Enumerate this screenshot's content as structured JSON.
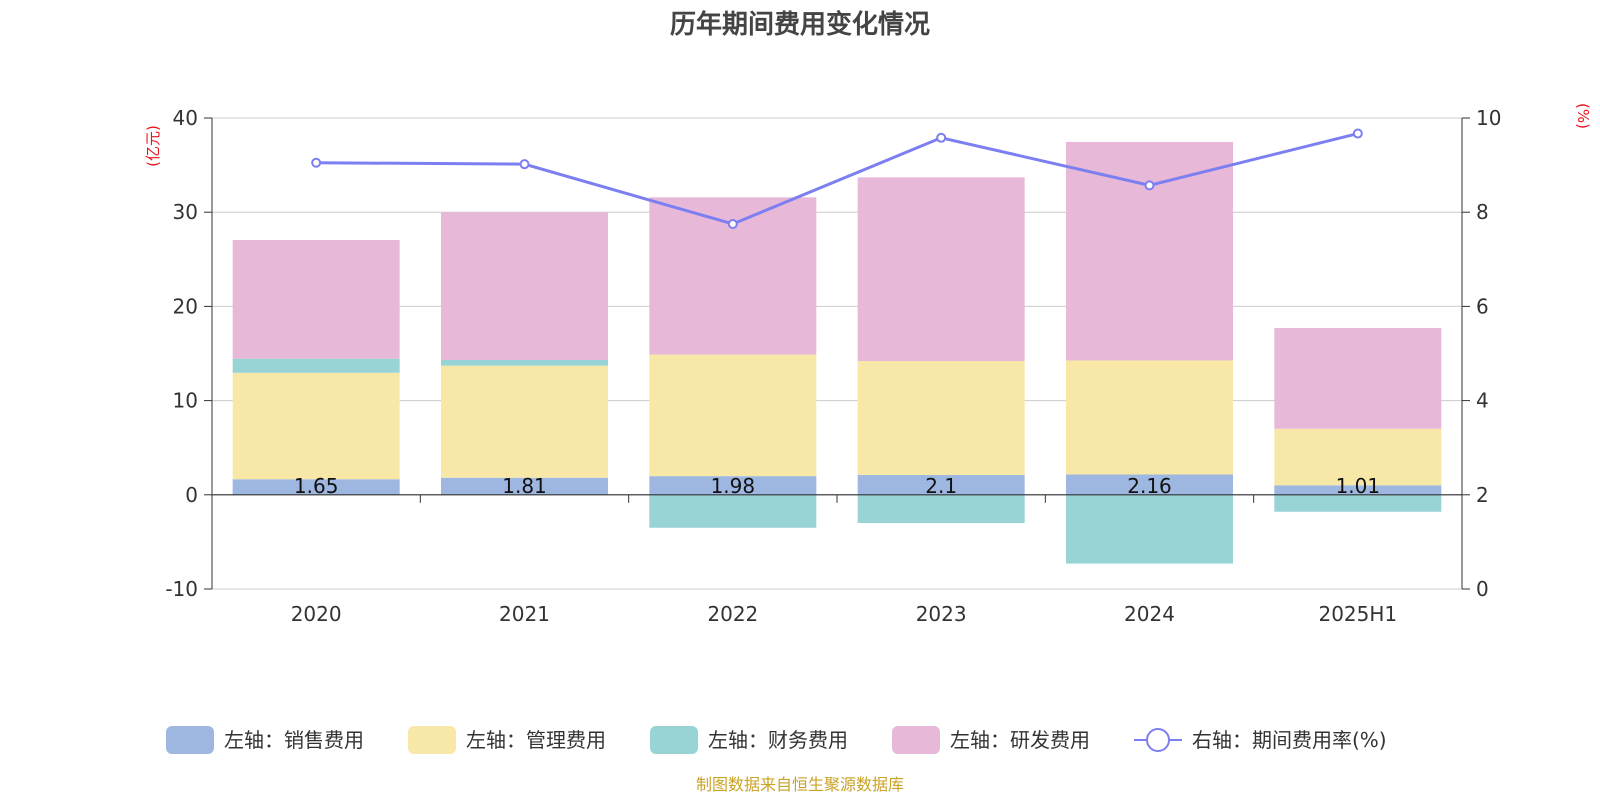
{
  "chart_data": {
    "type": "bar",
    "title": "历年期间费用变化情况",
    "categories": [
      "2020",
      "2021",
      "2022",
      "2023",
      "2024",
      "2025H1"
    ],
    "left_axis": {
      "unit": "(亿元)",
      "ylim": [
        -10,
        40
      ],
      "ticks": [
        "-10",
        "0",
        "10",
        "20",
        "30",
        "40"
      ]
    },
    "right_axis": {
      "unit": "(%)",
      "ylim": [
        0,
        10
      ],
      "ticks": [
        "0",
        "2",
        "4",
        "6",
        "8",
        "10"
      ]
    },
    "grid": true,
    "stacked": true,
    "series": [
      {
        "name": "左轴：销售费用",
        "axis": "left",
        "color": "#9db7e1",
        "values": [
          1.65,
          1.81,
          1.98,
          2.1,
          2.16,
          1.01
        ],
        "labels": [
          "1.65",
          "1.81",
          "1.98",
          "2.1",
          "2.16",
          "1.01"
        ]
      },
      {
        "name": "左轴：管理费用",
        "axis": "left",
        "color": "#f8e8a8",
        "values": [
          11.3,
          11.9,
          12.9,
          12.1,
          12.1,
          6.0
        ]
      },
      {
        "name": "左轴：财务费用",
        "axis": "left",
        "color": "#98d4d6",
        "values": [
          1.5,
          0.6,
          -3.5,
          -3.0,
          -7.3,
          -1.8
        ]
      },
      {
        "name": "左轴：研发费用",
        "axis": "left",
        "color": "#e8b8d8",
        "values": [
          12.6,
          15.7,
          16.7,
          19.5,
          23.2,
          10.7
        ]
      },
      {
        "name": "右轴：期间费用率(%)",
        "axis": "right",
        "type": "line",
        "color": "#7b7ff0",
        "values": [
          9.05,
          9.02,
          7.75,
          9.58,
          8.57,
          9.67
        ]
      }
    ],
    "legend_position": "bottom"
  },
  "footer": {
    "source": "制图数据来自恒生聚源数据库"
  }
}
